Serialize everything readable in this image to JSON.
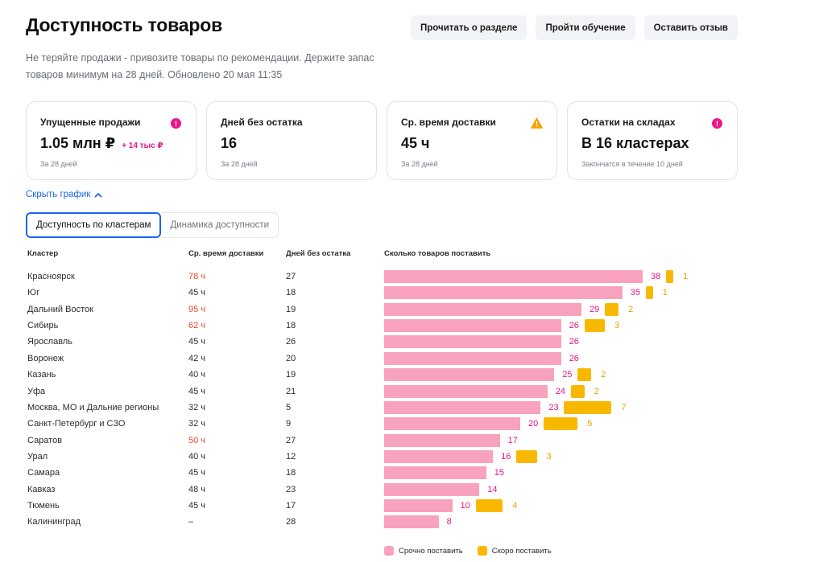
{
  "header": {
    "title": "Доступность товаров",
    "subtitle": "Не теряйте продажи - привозите товары по рекомендации. Держите запас товаров минимум на 28 дней. Обновлено 20 мая 11:35",
    "buttons": [
      "Прочитать о разделе",
      "Пройти обучение",
      "Оставить отзыв"
    ]
  },
  "cards": [
    {
      "label": "Упущенные продажи",
      "value": "1.05 млн ₽",
      "delta": "+ 14 тыс ₽",
      "note": "За 28 дней",
      "icon": "alert-circle-icon",
      "icon_color": "#e8178a"
    },
    {
      "label": "Дней без остатка",
      "value": "16",
      "delta": "",
      "note": "За 28 дней",
      "icon": "",
      "icon_color": ""
    },
    {
      "label": "Ср. время доставки",
      "value": "45 ч",
      "delta": "",
      "note": "За 28 дней",
      "icon": "warning-triangle-icon",
      "icon_color": "#f5a100"
    },
    {
      "label": "Остатки на складах",
      "value": "В 16 кластерах",
      "delta": "",
      "note": "Закончатся в течение 10 дней",
      "icon": "alert-circle-icon",
      "icon_color": "#e8178a"
    }
  ],
  "toggle": {
    "label": "Скрыть график"
  },
  "tabs": [
    "Доступность по кластерам",
    "Динамика доступности"
  ],
  "table": {
    "headers": [
      "Кластер",
      "Ср. время доставки",
      "Дней без остатка",
      "Сколько товаров поставить"
    ],
    "rows": [
      {
        "name": "Красноярск",
        "time": "78 ч",
        "slow": true,
        "days": "27",
        "urgent": 38,
        "soon": 1
      },
      {
        "name": "Юг",
        "time": "45 ч",
        "slow": false,
        "days": "18",
        "urgent": 35,
        "soon": 1
      },
      {
        "name": "Дальний Восток",
        "time": "95 ч",
        "slow": true,
        "days": "19",
        "urgent": 29,
        "soon": 2
      },
      {
        "name": "Сибирь",
        "time": "62 ч",
        "slow": true,
        "days": "18",
        "urgent": 26,
        "soon": 3
      },
      {
        "name": "Ярославль",
        "time": "45 ч",
        "slow": false,
        "days": "26",
        "urgent": 26,
        "soon": 0
      },
      {
        "name": "Воронеж",
        "time": "42 ч",
        "slow": false,
        "days": "20",
        "urgent": 26,
        "soon": 0
      },
      {
        "name": "Казань",
        "time": "40 ч",
        "slow": false,
        "days": "19",
        "urgent": 25,
        "soon": 2
      },
      {
        "name": "Уфа",
        "time": "45 ч",
        "slow": false,
        "days": "21",
        "urgent": 24,
        "soon": 2
      },
      {
        "name": "Москва, МО и Дальние регионы",
        "time": "32 ч",
        "slow": false,
        "days": "5",
        "urgent": 23,
        "soon": 7
      },
      {
        "name": "Санкт-Петербург и СЗО",
        "time": "32 ч",
        "slow": false,
        "days": "9",
        "urgent": 20,
        "soon": 5
      },
      {
        "name": "Саратов",
        "time": "50 ч",
        "slow": true,
        "days": "27",
        "urgent": 17,
        "soon": 0
      },
      {
        "name": "Урал",
        "time": "40 ч",
        "slow": false,
        "days": "12",
        "urgent": 16,
        "soon": 3
      },
      {
        "name": "Самара",
        "time": "45 ч",
        "slow": false,
        "days": "18",
        "urgent": 15,
        "soon": 0
      },
      {
        "name": "Кавказ",
        "time": "48 ч",
        "slow": false,
        "days": "23",
        "urgent": 14,
        "soon": 0
      },
      {
        "name": "Тюмень",
        "time": "45 ч",
        "slow": false,
        "days": "17",
        "urgent": 10,
        "soon": 4
      },
      {
        "name": "Калининград",
        "time": "–",
        "slow": false,
        "days": "28",
        "urgent": 8,
        "soon": 0
      }
    ]
  },
  "legend": {
    "urgent": "Срочно поставить",
    "soon": "Скоро поставить"
  },
  "colors": {
    "urgent": "#f9a2bd",
    "soon": "#f9b800",
    "accent": "#1a66f0",
    "danger": "#f2472c"
  }
}
